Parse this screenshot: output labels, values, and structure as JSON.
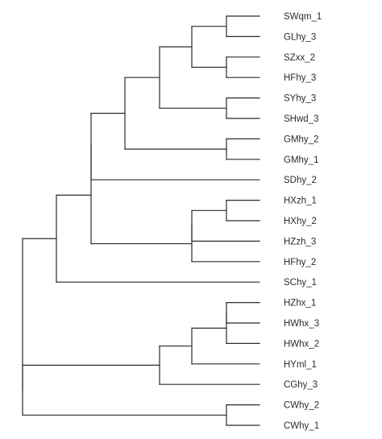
{
  "diagram": {
    "type": "dendrogram",
    "orientation": "left-to-right",
    "leaves": [
      "SWqm_1",
      "GLhy_3",
      "SZxx_2",
      "HFhy_3",
      "SYhy_3",
      "SHwd_3",
      "GMhy_2",
      "GMhy_1",
      "SDhy_2",
      "HXzh_1",
      "HXhy_2",
      "HZzh_3",
      "HFhy_2",
      "SChy_1",
      "HZhx_1",
      "HWhx_3",
      "HWhx_2",
      "HYml_1",
      "CGhy_3",
      "CWhy_2",
      "CWhy_1"
    ],
    "tree": {
      "children": [
        {
          "children": [
            {
              "children": [
                {
                  "children": [
                    {
                      "children": [
                        {
                          "children": [
                            {
                              "children": [
                                {
                                  "leaf": 0
                                },
                                {
                                  "leaf": 1
                                }
                              ]
                            },
                            {
                              "children": [
                                {
                                  "leaf": 2
                                },
                                {
                                  "leaf": 3
                                }
                              ]
                            }
                          ]
                        },
                        {
                          "children": [
                            {
                              "leaf": 4
                            },
                            {
                              "leaf": 5
                            }
                          ]
                        }
                      ]
                    },
                    {
                      "children": [
                        {
                          "leaf": 6
                        },
                        {
                          "leaf": 7
                        }
                      ]
                    }
                  ]
                },
                {
                  "leaf": 8
                }
              ]
            },
            {
              "children": [
                {
                  "children": [
                    {
                      "children": [
                        {
                          "leaf": 9
                        },
                        {
                          "leaf": 10
                        }
                      ]
                    },
                    {
                      "leaf": 11
                    }
                  ]
                },
                {
                  "leaf": 12
                }
              ]
            }
          ]
        },
        {
          "leaf": 13
        }
      ]
    },
    "tree_root": "top",
    "root_outgroup": {
      "children": [
        {
          "children": [
            {
              "children": [
                {
                  "children": [
                    {
                      "leaf": 14
                    },
                    {
                      "leaf": 15
                    }
                  ]
                },
                {
                  "leaf": 16
                }
              ]
            },
            {
              "leaf": 17
            }
          ]
        },
        {
          "leaf": 18
        }
      ]
    },
    "root_outgroup2": {
      "children": [
        {
          "leaf": 19
        },
        {
          "leaf": 20
        }
      ]
    }
  }
}
